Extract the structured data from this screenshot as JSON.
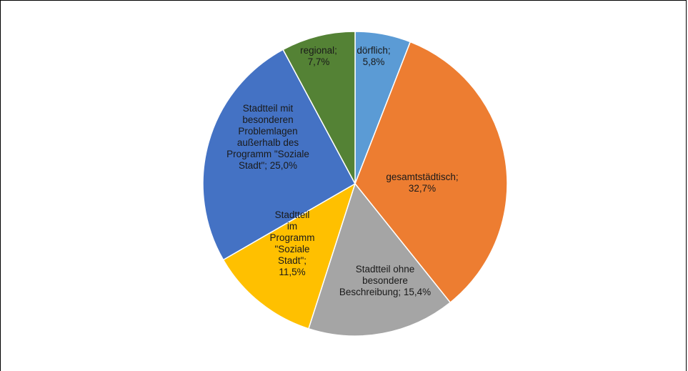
{
  "chart_data": {
    "type": "pie",
    "title": "",
    "slices": [
      {
        "name": "dörflich",
        "value": 5.8,
        "label_lines": [
          "dörflich;",
          "5,8%"
        ],
        "color": "#5B9BD5"
      },
      {
        "name": "gesamtstädtisch",
        "value": 32.7,
        "label_lines": [
          "gesamtstädtisch;",
          "32,7%"
        ],
        "color": "#ED7D31"
      },
      {
        "name": "Stadtteil ohne besondere Beschreibung",
        "value": 15.4,
        "label_lines": [
          "Stadtteil ohne",
          "besondere",
          "Beschreibung; 15,4%"
        ],
        "color": "#A5A5A5"
      },
      {
        "name": "Stadtteil im Programm \"Soziale Stadt\"",
        "value": 11.5,
        "label_lines": [
          "Stadtteil",
          "im",
          "Programm",
          "\"Soziale",
          "Stadt\";",
          "11,5%"
        ],
        "color": "#FFC000"
      },
      {
        "name": "Stadtteil mit besonderen Problemlagen außerhalb des Programm \"Soziale Stadt\"",
        "value": 25.0,
        "label_lines": [
          "Stadtteil mit",
          "besonderen",
          "Problemlagen",
          "außerhalb des",
          "Programm \"Soziale",
          "Stadt\"; 25,0%"
        ],
        "color": "#4472C4"
      },
      {
        "name": "regional",
        "value": 7.7,
        "label_lines": [
          "regional;",
          "7,7%"
        ],
        "color": "#548235"
      }
    ],
    "legend": "none",
    "start_angle": "12 o'clock",
    "direction": "clockwise"
  }
}
